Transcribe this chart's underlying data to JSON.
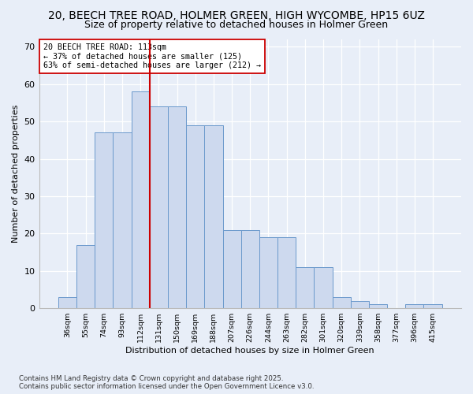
{
  "title1": "20, BEECH TREE ROAD, HOLMER GREEN, HIGH WYCOMBE, HP15 6UZ",
  "title2": "Size of property relative to detached houses in Holmer Green",
  "xlabel": "Distribution of detached houses by size in Holmer Green",
  "ylabel": "Number of detached properties",
  "categories": [
    "36sqm",
    "55sqm",
    "74sqm",
    "93sqm",
    "112sqm",
    "131sqm",
    "150sqm",
    "169sqm",
    "188sqm",
    "207sqm",
    "226sqm",
    "244sqm",
    "263sqm",
    "282sqm",
    "301sqm",
    "320sqm",
    "339sqm",
    "358sqm",
    "377sqm",
    "396sqm",
    "415sqm"
  ],
  "values": [
    3,
    17,
    47,
    47,
    58,
    54,
    54,
    49,
    49,
    21,
    21,
    19,
    19,
    11,
    11,
    3,
    2,
    1,
    0,
    1,
    1
  ],
  "bar_color": "#cdd9ee",
  "bar_edge_color": "#6b99cc",
  "vline_x": 4.5,
  "vline_color": "#cc0000",
  "annotation_text": "20 BEECH TREE ROAD: 113sqm\n← 37% of detached houses are smaller (125)\n63% of semi-detached houses are larger (212) →",
  "ylim": [
    0,
    72
  ],
  "yticks": [
    0,
    10,
    20,
    30,
    40,
    50,
    60,
    70
  ],
  "footer": "Contains HM Land Registry data © Crown copyright and database right 2025.\nContains public sector information licensed under the Open Government Licence v3.0.",
  "bg_color": "#e8eef8",
  "plot_bg_color": "#e8eef8",
  "title1_fontsize": 10,
  "title2_fontsize": 9,
  "bar_width": 1.0
}
